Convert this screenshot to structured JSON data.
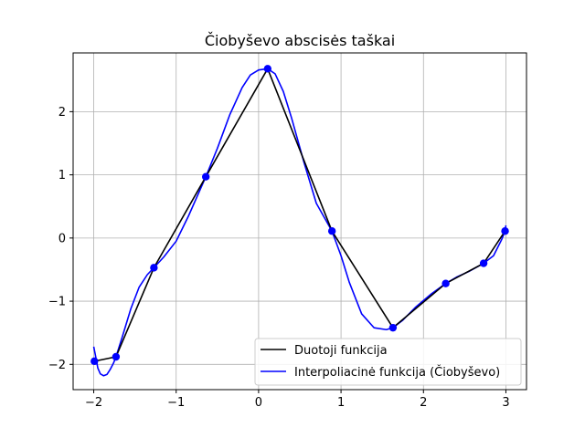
{
  "chart_data": {
    "type": "line",
    "title": "Čiobyševo abscisės taškai",
    "xlabel": "",
    "ylabel": "",
    "xlim": [
      -2.25,
      3.25
    ],
    "ylim": [
      -2.4,
      2.93
    ],
    "xticks": [
      -2,
      -1,
      0,
      1,
      2,
      3
    ],
    "xtick_labels": [
      "−2",
      "−1",
      "0",
      "1",
      "2",
      "3"
    ],
    "yticks": [
      -2,
      -1,
      0,
      1,
      2
    ],
    "ytick_labels": [
      "−2",
      "−1",
      "0",
      "1",
      "2"
    ],
    "grid": true,
    "legend_position": "lower-right",
    "series": [
      {
        "name": "Duotoji funkcija",
        "color": "#000000",
        "style": "line",
        "x": [
          -1.992,
          -1.73,
          -1.27,
          -0.64,
          0.11,
          0.89,
          1.63,
          2.27,
          2.73,
          2.99
        ],
        "y": [
          -1.95,
          -1.88,
          -0.47,
          0.97,
          2.68,
          0.11,
          -1.42,
          -0.72,
          -0.4,
          0.11
        ]
      },
      {
        "name": "Interpoliacinė funkcija (Čiobyševo)",
        "color": "#0000ff",
        "style": "line",
        "x": [
          -2.0,
          -1.97,
          -1.95,
          -1.92,
          -1.88,
          -1.84,
          -1.8,
          -1.76,
          -1.73,
          -1.65,
          -1.55,
          -1.45,
          -1.35,
          -1.27,
          -1.15,
          -1.0,
          -0.85,
          -0.64,
          -0.5,
          -0.35,
          -0.2,
          -0.1,
          0.0,
          0.11,
          0.2,
          0.3,
          0.4,
          0.55,
          0.7,
          0.89,
          1.0,
          1.1,
          1.25,
          1.4,
          1.55,
          1.63,
          1.75,
          1.9,
          2.1,
          2.27,
          2.4,
          2.55,
          2.73,
          2.85,
          2.95,
          2.99,
          3.0
        ],
        "y": [
          -1.72,
          -1.92,
          -2.06,
          -2.15,
          -2.18,
          -2.16,
          -2.08,
          -1.98,
          -1.88,
          -1.55,
          -1.12,
          -0.78,
          -0.58,
          -0.47,
          -0.3,
          -0.05,
          0.35,
          0.97,
          1.42,
          1.95,
          2.38,
          2.58,
          2.66,
          2.68,
          2.6,
          2.32,
          1.9,
          1.2,
          0.55,
          0.11,
          -0.28,
          -0.7,
          -1.2,
          -1.42,
          -1.45,
          -1.42,
          -1.3,
          -1.1,
          -0.88,
          -0.72,
          -0.62,
          -0.53,
          -0.4,
          -0.28,
          -0.02,
          0.11,
          0.2
        ]
      },
      {
        "name": "",
        "color": "#0000ff",
        "style": "markers",
        "x": [
          -1.992,
          -1.73,
          -1.27,
          -0.64,
          0.11,
          0.89,
          1.63,
          2.27,
          2.73,
          2.99
        ],
        "y": [
          -1.95,
          -1.88,
          -0.47,
          0.97,
          2.68,
          0.11,
          -1.42,
          -0.72,
          -0.4,
          0.11
        ]
      }
    ]
  }
}
